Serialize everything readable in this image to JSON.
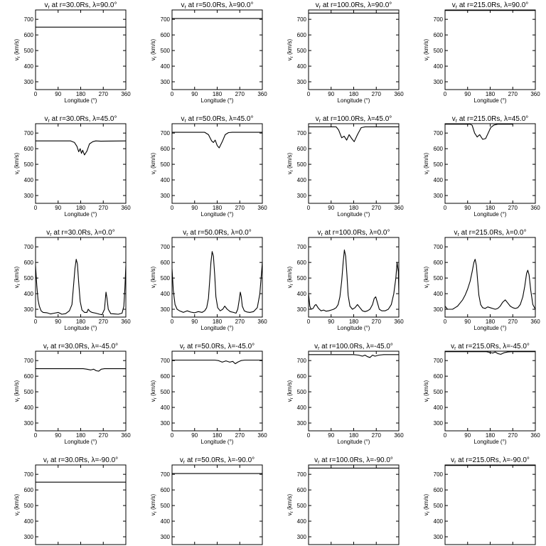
{
  "chart_data": {
    "type": "line",
    "grid": false,
    "legend": "none",
    "line_color": "#000000",
    "xlabel": "Longitude (°)",
    "ylabel": "v",
    "ylabel_subscript": "r",
    "ylabel_unit": " (km/s)",
    "xlim": [
      0,
      360
    ],
    "ylim": [
      250,
      760
    ],
    "xticks": [
      "0",
      "90",
      "180",
      "270",
      "360"
    ],
    "yticks": [
      "300",
      "400",
      "500",
      "600",
      "700"
    ],
    "title_prefix": "v",
    "title_subscript": "r",
    "radii": [
      "30.0Rs",
      "50.0Rs",
      "100.0Rs",
      "215.0Rs"
    ],
    "latitudes": [
      "90.0°",
      "45.0°",
      "0.0°",
      "-45.0°",
      "-90.0°"
    ],
    "panels": [
      {
        "title": " at r=30.0Rs,  λ=90.0°",
        "x": [
          0,
          360
        ],
        "y": [
          650,
          650
        ]
      },
      {
        "title": " at r=50.0Rs,  λ=90.0°",
        "x": [
          0,
          360
        ],
        "y": [
          705,
          705
        ]
      },
      {
        "title": " at r=100.0Rs,  λ=90.0°",
        "x": [
          0,
          360
        ],
        "y": [
          740,
          740
        ]
      },
      {
        "title": " at r=215.0Rs,  λ=90.0°",
        "x": [
          0,
          360
        ],
        "y": [
          757,
          757
        ]
      },
      {
        "title": " at r=30.0Rs,  λ=45.0°",
        "x": [
          0,
          140,
          155,
          165,
          172,
          178,
          183,
          188,
          195,
          205,
          215,
          228,
          240,
          260,
          360
        ],
        "y": [
          650,
          650,
          640,
          615,
          580,
          600,
          570,
          590,
          560,
          585,
          630,
          645,
          650,
          648,
          650
        ]
      },
      {
        "title": " at r=50.0Rs,  λ=45.0°",
        "x": [
          0,
          130,
          145,
          158,
          165,
          172,
          180,
          188,
          200,
          212,
          225,
          240,
          360
        ],
        "y": [
          705,
          705,
          690,
          650,
          640,
          655,
          620,
          605,
          645,
          690,
          703,
          705,
          705
        ]
      },
      {
        "title": " at r=100.0Rs,  λ=45.0°",
        "x": [
          0,
          110,
          120,
          132,
          142,
          152,
          162,
          172,
          182,
          195,
          210,
          225,
          240,
          360
        ],
        "y": [
          740,
          740,
          720,
          670,
          680,
          655,
          690,
          665,
          645,
          690,
          735,
          740,
          740,
          740
        ]
      },
      {
        "title": " at r=215.0Rs,  λ=45.0°",
        "x": [
          0,
          100,
          108,
          118,
          128,
          138,
          150,
          162,
          172,
          182,
          195,
          210,
          225,
          272
        ],
        "y": [
          757,
          757,
          750,
          700,
          675,
          690,
          660,
          665,
          700,
          735,
          752,
          757,
          757,
          757
        ]
      },
      {
        "title": " at r=30.0Rs,  λ=0.0°",
        "x": [
          0,
          5,
          10,
          15,
          22,
          30,
          45,
          60,
          75,
          90,
          105,
          120,
          135,
          145,
          152,
          157,
          162,
          167,
          172,
          178,
          185,
          195,
          205,
          210,
          218,
          225,
          240,
          255,
          265,
          275,
          278,
          281,
          285,
          290,
          300,
          315,
          330,
          345,
          352,
          356,
          360
        ],
        "y": [
          580,
          450,
          360,
          320,
          290,
          280,
          278,
          270,
          275,
          280,
          268,
          272,
          290,
          330,
          460,
          560,
          620,
          590,
          470,
          350,
          295,
          280,
          280,
          300,
          285,
          280,
          275,
          268,
          265,
          300,
          360,
          410,
          370,
          300,
          272,
          270,
          268,
          275,
          320,
          430,
          580
        ]
      },
      {
        "title": " at r=50.0Rs,  λ=0.0°",
        "x": [
          0,
          5,
          12,
          20,
          30,
          45,
          60,
          75,
          90,
          105,
          120,
          130,
          138,
          145,
          150,
          155,
          160,
          165,
          170,
          175,
          182,
          192,
          202,
          210,
          220,
          232,
          245,
          255,
          262,
          268,
          272,
          276,
          280,
          288,
          298,
          310,
          325,
          340,
          350,
          356,
          360
        ],
        "y": [
          560,
          420,
          330,
          300,
          290,
          280,
          290,
          282,
          278,
          285,
          280,
          290,
          310,
          370,
          480,
          600,
          670,
          640,
          520,
          380,
          310,
          290,
          300,
          320,
          300,
          285,
          280,
          275,
          300,
          360,
          410,
          380,
          320,
          290,
          283,
          280,
          285,
          310,
          400,
          520,
          600
        ]
      },
      {
        "title": " at r=100.0Rs,  λ=0.0°",
        "x": [
          0,
          5,
          10,
          18,
          25,
          30,
          40,
          50,
          60,
          70,
          80,
          90,
          100,
          110,
          118,
          125,
          132,
          138,
          143,
          148,
          153,
          158,
          165,
          175,
          185,
          195,
          205,
          215,
          225,
          235,
          245,
          255,
          262,
          268,
          275,
          282,
          292,
          305,
          318,
          330,
          340,
          348,
          353,
          358,
          360
        ],
        "y": [
          400,
          320,
          300,
          305,
          325,
          330,
          305,
          290,
          295,
          288,
          290,
          295,
          300,
          310,
          330,
          380,
          480,
          600,
          680,
          640,
          520,
          390,
          320,
          300,
          310,
          330,
          310,
          290,
          285,
          290,
          300,
          330,
          370,
          380,
          340,
          300,
          290,
          290,
          300,
          330,
          400,
          500,
          600,
          540,
          400
        ]
      },
      {
        "title": " at r=215.0Rs,  λ=0.0°",
        "x": [
          0,
          10,
          20,
          30,
          40,
          50,
          60,
          70,
          80,
          90,
          100,
          108,
          115,
          120,
          125,
          130,
          135,
          142,
          150,
          160,
          170,
          180,
          190,
          200,
          210,
          220,
          230,
          240,
          250,
          260,
          270,
          280,
          290,
          300,
          310,
          318,
          325,
          330,
          335,
          342,
          350,
          360
        ],
        "y": [
          320,
          300,
          300,
          300,
          310,
          320,
          340,
          360,
          390,
          430,
          480,
          540,
          600,
          620,
          580,
          480,
          390,
          330,
          310,
          305,
          315,
          310,
          305,
          300,
          305,
          320,
          345,
          360,
          340,
          320,
          310,
          305,
          310,
          330,
          380,
          450,
          530,
          550,
          520,
          420,
          330,
          300
        ]
      },
      {
        "title": " at r=30.0Rs,  λ=-45.0°",
        "x": [
          0,
          190,
          205,
          220,
          232,
          242,
          252,
          262,
          275,
          290,
          360
        ],
        "y": [
          648,
          648,
          645,
          640,
          645,
          635,
          632,
          645,
          648,
          648,
          648
        ]
      },
      {
        "title": " at r=50.0Rs,  λ=-45.0°",
        "x": [
          0,
          170,
          185,
          200,
          215,
          230,
          242,
          252,
          262,
          275,
          290,
          360
        ],
        "y": [
          703,
          703,
          700,
          690,
          698,
          690,
          695,
          680,
          690,
          700,
          703,
          703
        ]
      },
      {
        "title": " at r=100.0Rs,  λ=-45.0°",
        "x": [
          0,
          180,
          200,
          215,
          225,
          235,
          245,
          255,
          265,
          280,
          300,
          360
        ],
        "y": [
          738,
          738,
          735,
          728,
          735,
          725,
          720,
          735,
          728,
          735,
          738,
          738
        ]
      },
      {
        "title": " at r=215.0Rs,  λ=-45.0°",
        "x": [
          0,
          165,
          180,
          190,
          200,
          210,
          222,
          235,
          250,
          265,
          360
        ],
        "y": [
          757,
          757,
          752,
          748,
          755,
          745,
          740,
          750,
          755,
          757,
          757
        ]
      },
      {
        "title": " at r=30.0Rs,  λ=-90.0°",
        "x": [
          0,
          360
        ],
        "y": [
          650,
          650
        ]
      },
      {
        "title": " at r=50.0Rs,  λ=-90.0°",
        "x": [
          0,
          360
        ],
        "y": [
          705,
          705
        ]
      },
      {
        "title": " at r=100.0Rs,  λ=-90.0°",
        "x": [
          0,
          360
        ],
        "y": [
          740,
          740
        ]
      },
      {
        "title": " at r=215.0Rs,  λ=-90.0°",
        "x": [
          0,
          360
        ],
        "y": [
          757,
          757
        ]
      }
    ]
  }
}
